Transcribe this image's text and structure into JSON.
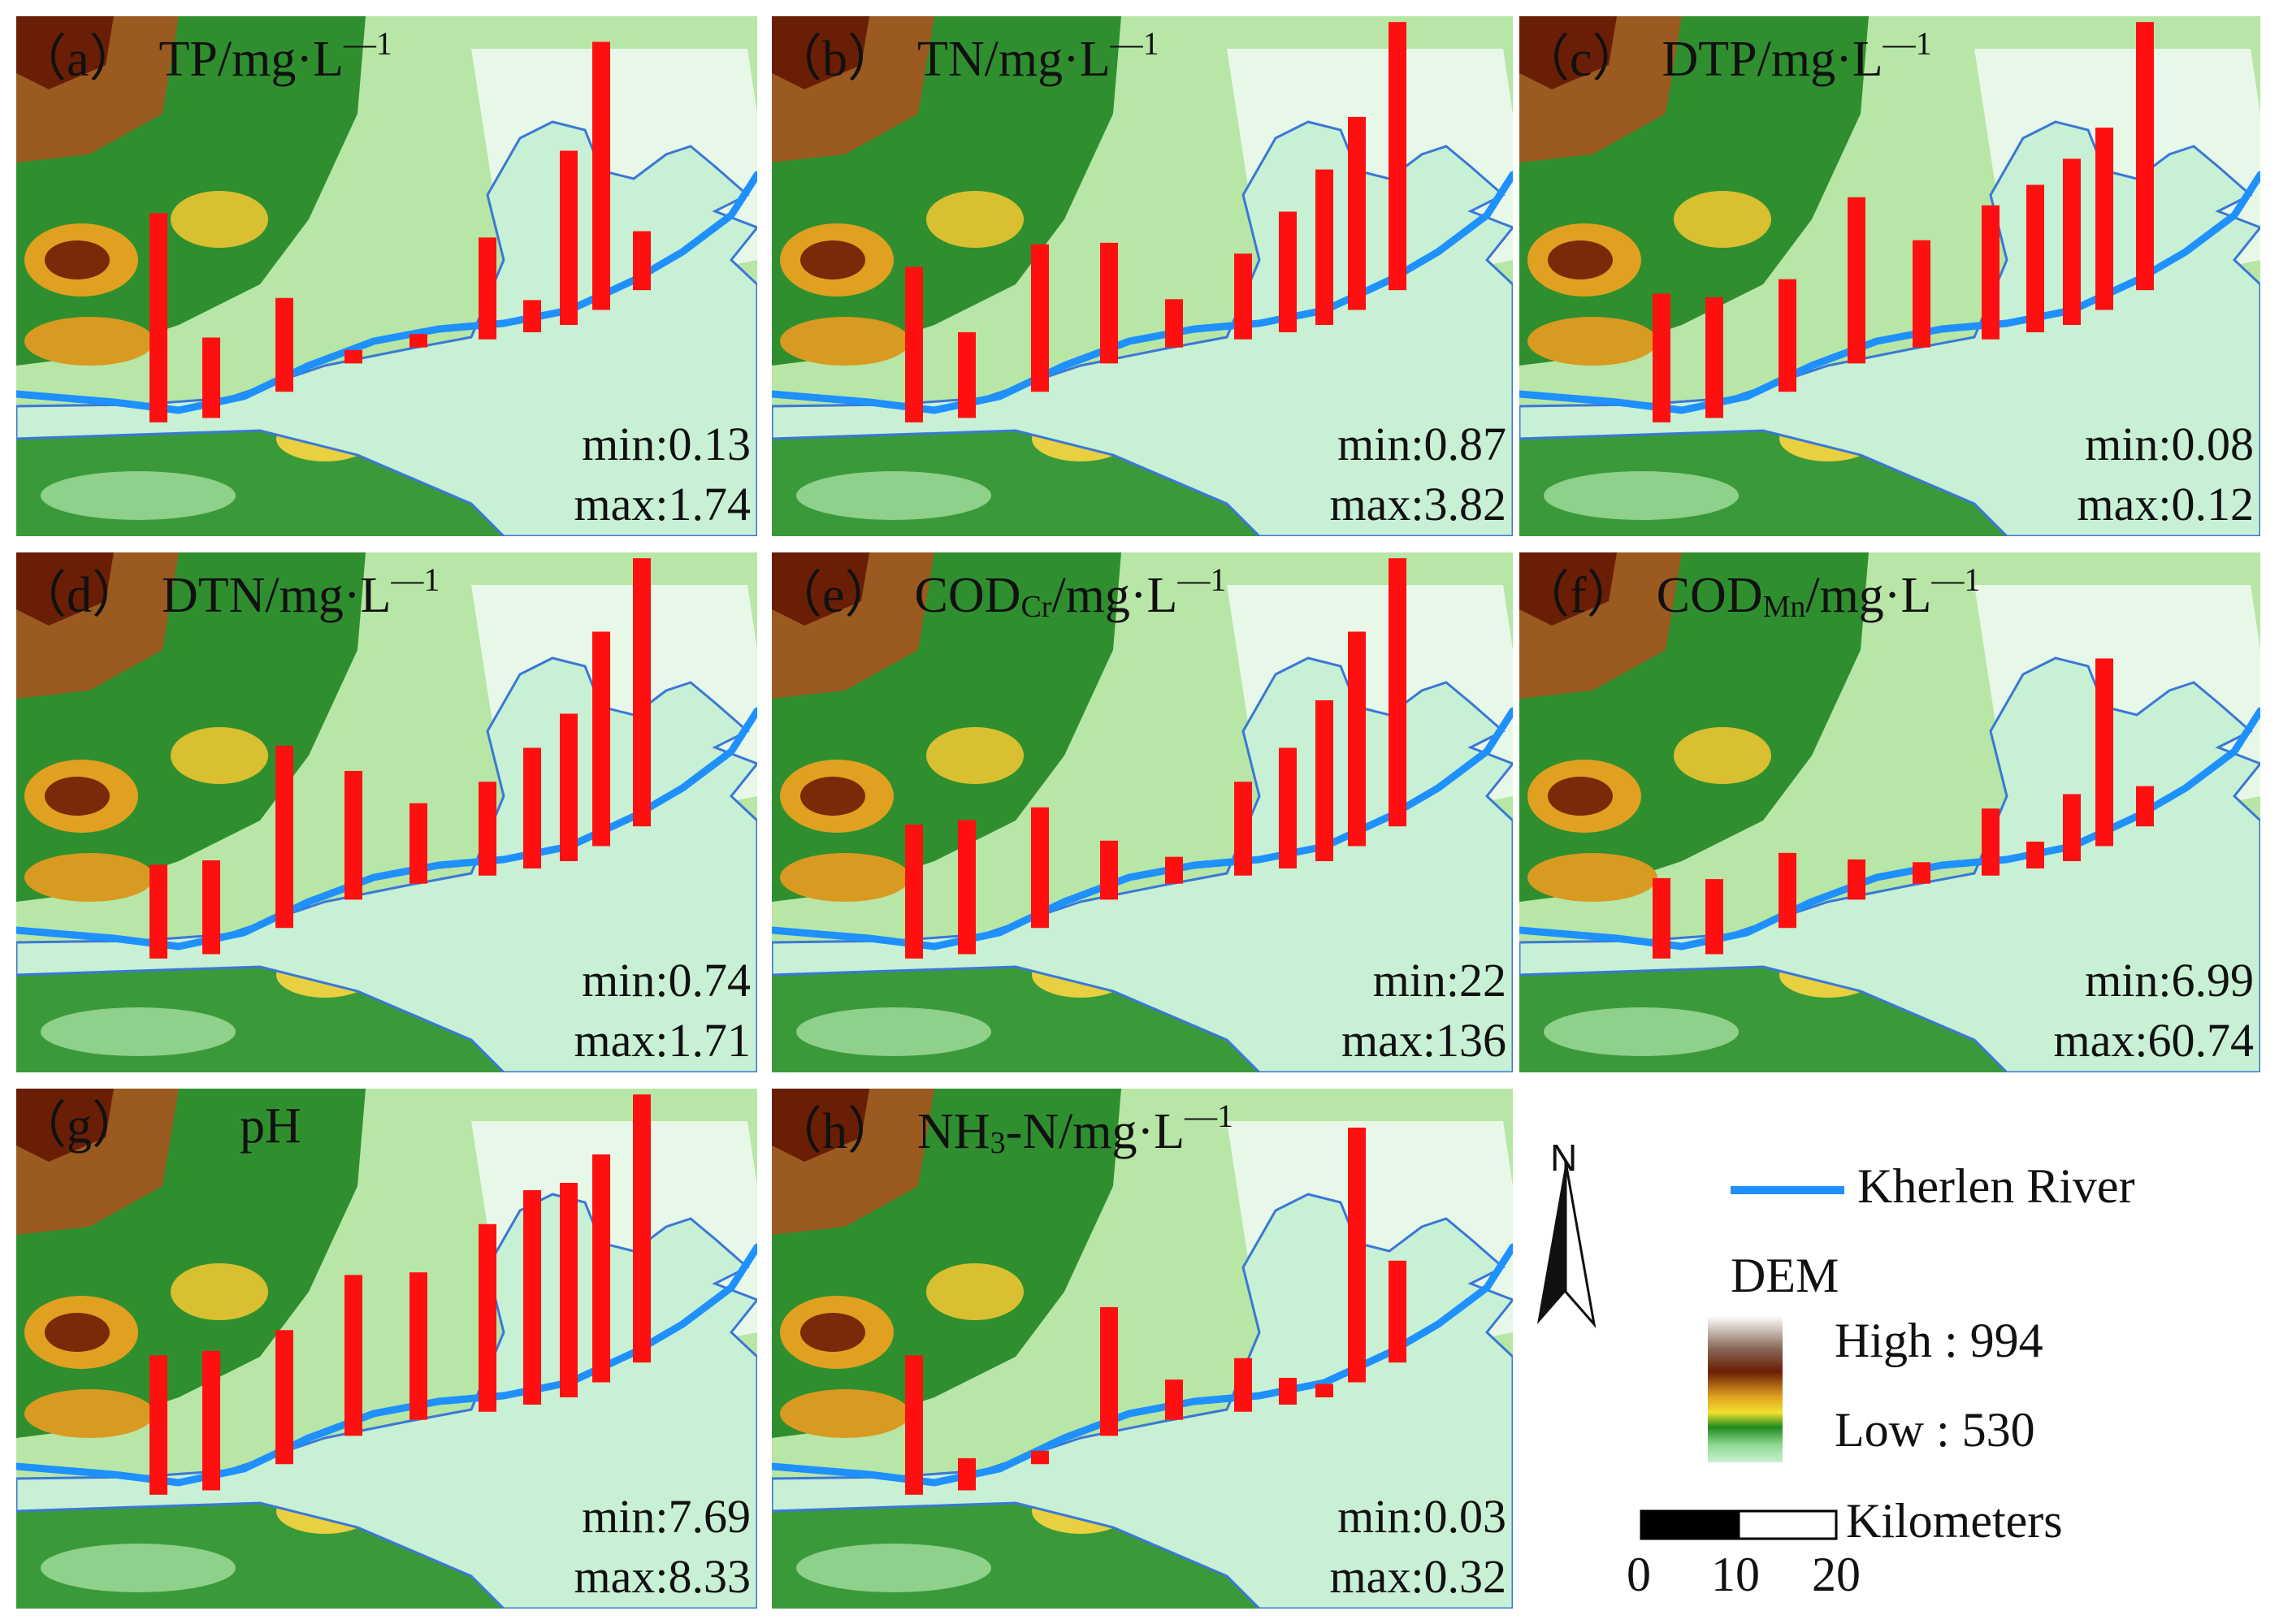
{
  "panels": [
    {
      "tag": "（a）",
      "var": "TP/mg·L",
      "sub": "",
      "tail": "",
      "sup": "—1",
      "min": "min:0.13",
      "max": "max:1.74",
      "bars": [
        0.78,
        0.3,
        0.35,
        0.05,
        0.05,
        0.38,
        0.12,
        0.65,
        1.0,
        0.22
      ]
    },
    {
      "tag": "（b）",
      "var": "TN/mg·L",
      "sub": "",
      "tail": "",
      "sup": "—1",
      "min": "min:0.87",
      "max": "max:3.82",
      "bars": [
        0.58,
        0.32,
        0.55,
        0.45,
        0.18,
        0.32,
        0.45,
        0.58,
        0.72,
        1.0
      ]
    },
    {
      "tag": "（c）",
      "var": "DTP/mg·L",
      "sub": "",
      "tail": "",
      "sup": "—1",
      "min": "min:0.08",
      "max": "max:0.12",
      "bars": [
        0.48,
        0.45,
        0.42,
        0.62,
        0.4,
        0.5,
        0.55,
        0.62,
        0.68,
        1.0
      ]
    },
    {
      "tag": "（d）",
      "var": "DTN/mg·L",
      "sub": "",
      "tail": "",
      "sup": "—1",
      "min": "min:0.74",
      "max": "max:1.71",
      "bars": [
        0.35,
        0.35,
        0.68,
        0.48,
        0.3,
        0.35,
        0.45,
        0.55,
        0.8,
        1.0
      ]
    },
    {
      "tag": "（e）",
      "var": "COD",
      "sub": "Cr",
      "tail": "/mg·L",
      "sup": "—1",
      "min": "min:22",
      "max": "max:136",
      "bars": [
        0.5,
        0.5,
        0.45,
        0.22,
        0.1,
        0.35,
        0.45,
        0.6,
        0.8,
        1.0
      ]
    },
    {
      "tag": "（f）",
      "var": "COD",
      "sub": "Mn",
      "tail": "/mg·L",
      "sup": "—1",
      "min": "min:6.99",
      "max": "max:60.74",
      "bars": [
        0.3,
        0.28,
        0.28,
        0.15,
        0.08,
        0.25,
        0.1,
        0.25,
        0.7,
        0.15
      ]
    },
    {
      "tag": "（g）",
      "var": "pH",
      "sub": "",
      "tail": "",
      "sup": "",
      "min": "min:7.69",
      "max": "max:8.33",
      "bars": [
        0.52,
        0.52,
        0.5,
        0.6,
        0.55,
        0.7,
        0.8,
        0.8,
        0.85,
        1.0
      ]
    },
    {
      "tag": "（h）",
      "var": "NH",
      "sub": "3",
      "tail": "-N/mg·L",
      "sup": "—1",
      "min": "min:0.03",
      "max": "max:0.32",
      "bars": [
        0.52,
        0.12,
        0.05,
        0.48,
        0.15,
        0.2,
        0.1,
        0.05,
        0.95,
        0.38
      ]
    }
  ],
  "legend": {
    "north": "N",
    "river": "Kherlen River",
    "dem_title": "DEM",
    "dem_high": "High : 994",
    "dem_low": "Low : 530",
    "scale_unit": "Kilometers",
    "scale_ticks": [
      "0",
      "10",
      "20"
    ],
    "colors": {
      "river": "#1e90ff",
      "bar": "#ff1010",
      "plain": "#c8f0d4",
      "plain_outline": "#3a78d6"
    }
  }
}
